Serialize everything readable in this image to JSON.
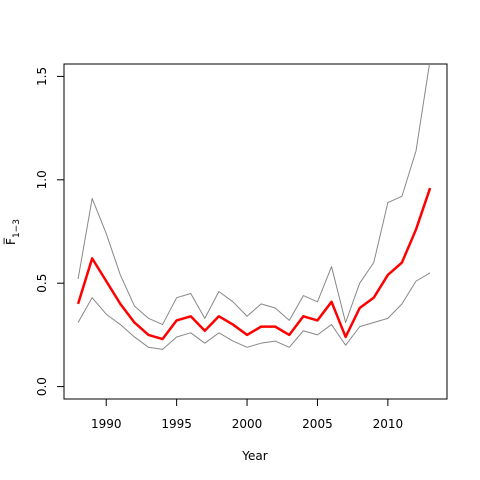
{
  "chart_data": {
    "type": "line",
    "xlabel": "Year",
    "ylabel": "F̅",
    "ylabel_subscript": "1−3",
    "xlim": [
      1987,
      2014.2
    ],
    "ylim": [
      -0.06,
      1.56
    ],
    "x_ticks": [
      1990,
      1995,
      2000,
      2005,
      2010
    ],
    "x_tick_labels": [
      "1990",
      "1995",
      "2000",
      "2005",
      "2010"
    ],
    "y_ticks": [
      0.0,
      0.5,
      1.0,
      1.5
    ],
    "y_tick_labels": [
      "0.0",
      "0.5",
      "1.0",
      "1.5"
    ],
    "grid": false,
    "x": [
      1988,
      1989,
      1990,
      1991,
      1992,
      1993,
      1994,
      1995,
      1996,
      1997,
      1998,
      1999,
      2000,
      2001,
      2002,
      2003,
      2004,
      2005,
      2006,
      2007,
      2008,
      2009,
      2010,
      2011,
      2012,
      2013
    ],
    "series": [
      {
        "color": "#ff0000",
        "width": 2.5,
        "role": "estimate",
        "values": [
          0.4,
          0.62,
          0.51,
          0.4,
          0.31,
          0.25,
          0.23,
          0.32,
          0.34,
          0.27,
          0.34,
          0.3,
          0.25,
          0.29,
          0.29,
          0.25,
          0.34,
          0.32,
          0.41,
          0.24,
          0.38,
          0.43,
          0.54,
          0.6,
          0.76,
          0.96
        ]
      },
      {
        "color": "#888888",
        "width": 1,
        "role": "upper",
        "values": [
          0.52,
          0.91,
          0.74,
          0.54,
          0.39,
          0.33,
          0.3,
          0.43,
          0.45,
          0.33,
          0.46,
          0.41,
          0.34,
          0.4,
          0.38,
          0.32,
          0.44,
          0.41,
          0.58,
          0.31,
          0.5,
          0.6,
          0.89,
          0.92,
          1.14,
          1.58
        ]
      },
      {
        "color": "#888888",
        "width": 1,
        "role": "lower",
        "values": [
          0.31,
          0.43,
          0.35,
          0.3,
          0.24,
          0.19,
          0.18,
          0.24,
          0.26,
          0.21,
          0.26,
          0.22,
          0.19,
          0.21,
          0.22,
          0.19,
          0.27,
          0.25,
          0.3,
          0.2,
          0.29,
          0.31,
          0.33,
          0.4,
          0.51,
          0.55
        ]
      }
    ]
  }
}
